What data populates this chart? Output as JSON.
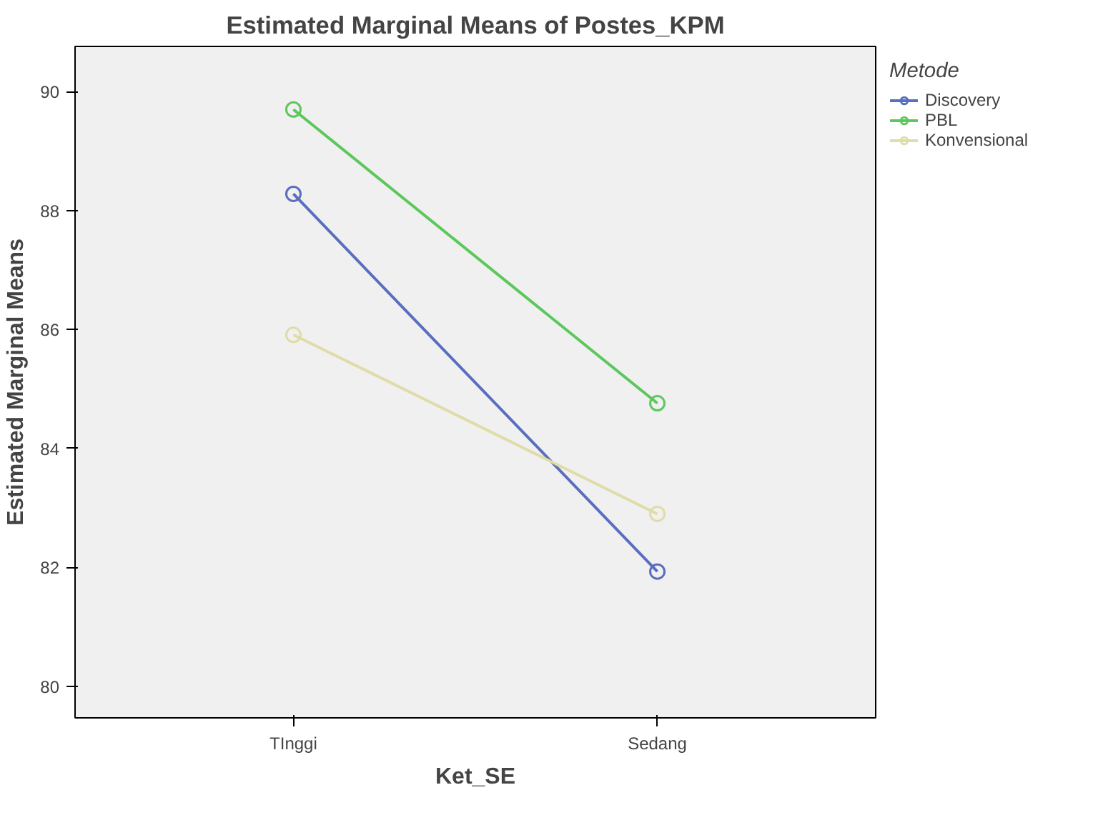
{
  "chart_data": {
    "type": "line",
    "title": "Estimated Marginal Means of Postes_KPM",
    "xlabel": "Ket_SE",
    "ylabel": "Estimated Marginal Means",
    "legend_title": "Metode",
    "categories": [
      "TInggi",
      "Sedang"
    ],
    "series": [
      {
        "name": "Discovery",
        "color": "#5a6ebf",
        "values": [
          88.28,
          81.93
        ]
      },
      {
        "name": "PBL",
        "color": "#5cc85c",
        "values": [
          89.7,
          84.76
        ]
      },
      {
        "name": "Konvensional",
        "color": "#e0dca8",
        "values": [
          85.91,
          82.9
        ]
      }
    ],
    "ylim": [
      79.47,
      90.76
    ],
    "yticks": [
      80,
      82,
      84,
      86,
      88,
      90
    ],
    "grid": false,
    "legend": "right",
    "marker": "circle",
    "line_style": "solid"
  }
}
